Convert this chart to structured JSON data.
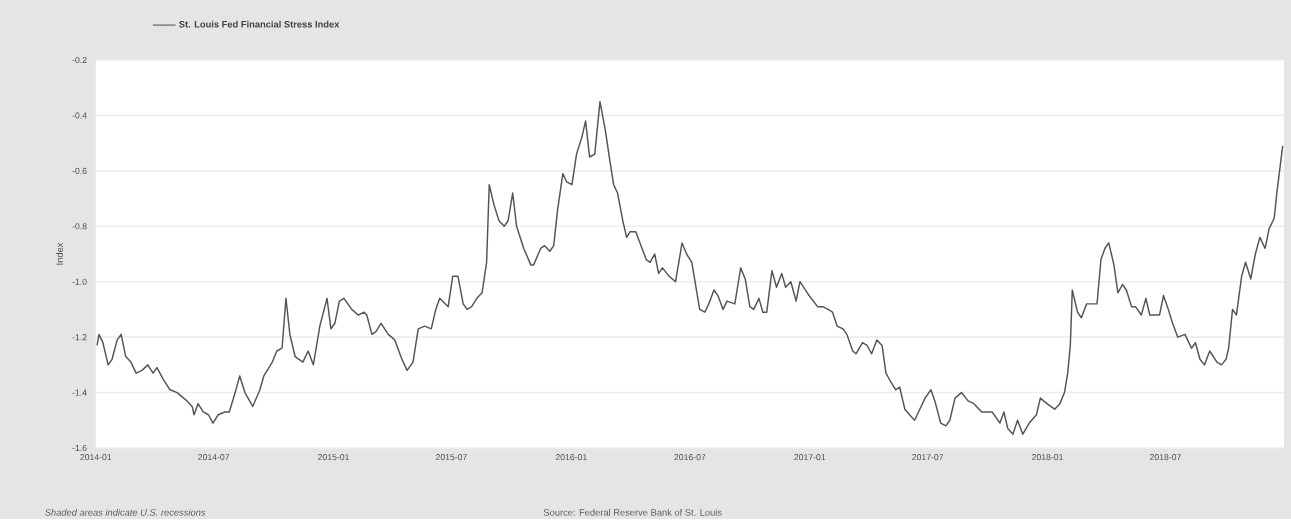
{
  "chart_data": {
    "type": "line",
    "ylabel": "Index",
    "annotations": [
      "Shaded areas indicate U.S. recessions",
      "Source: Federal Reserve Bank of St. Louis"
    ],
    "legend": "top left",
    "grid": "y",
    "marker": "none",
    "line_style": "solid",
    "xlim": [
      "2014-01-01",
      "2018-12-30"
    ],
    "ylim": [
      -1.6,
      -0.2
    ],
    "xticks": [
      {
        "value": "2014-01",
        "label": "2014-01"
      },
      {
        "value": "2014-07",
        "label": "2014-07"
      },
      {
        "value": "2015-01",
        "label": "2015-01"
      },
      {
        "value": "2015-07",
        "label": "2015-07"
      },
      {
        "value": "2016-01",
        "label": "2016-01"
      },
      {
        "value": "2016-07",
        "label": "2016-07"
      },
      {
        "value": "2017-01",
        "label": "2017-01"
      },
      {
        "value": "2017-07",
        "label": "2017-07"
      },
      {
        "value": "2018-01",
        "label": "2018-01"
      },
      {
        "value": "2018-07",
        "label": "2018-07"
      }
    ],
    "yticks": [
      {
        "value": -1.6,
        "label": "-1.6"
      },
      {
        "value": -1.4,
        "label": "-1.4"
      },
      {
        "value": -1.2,
        "label": "-1.2"
      },
      {
        "value": -1.0,
        "label": "-1.0"
      },
      {
        "value": -0.8,
        "label": "-0.8"
      },
      {
        "value": -0.6,
        "label": "-0.6"
      },
      {
        "value": -0.4,
        "label": "-0.4"
      },
      {
        "value": -0.2,
        "label": "-0.2"
      }
    ],
    "x": [
      "2014-01-03",
      "2014-01-06",
      "2014-01-12",
      "2014-01-20",
      "2014-01-26",
      "2014-02-03",
      "2014-02-09",
      "2014-02-16",
      "2014-02-24",
      "2014-03-04",
      "2014-03-13",
      "2014-03-22",
      "2014-03-30",
      "2014-04-05",
      "2014-04-14",
      "2014-04-25",
      "2014-05-06",
      "2014-05-21",
      "2014-05-29",
      "2014-06-01",
      "2014-06-07",
      "2014-06-15",
      "2014-06-23",
      "2014-06-30",
      "2014-07-08",
      "2014-07-18",
      "2014-07-25",
      "2014-08-03",
      "2014-08-10",
      "2014-08-18",
      "2014-08-30",
      "2014-09-10",
      "2014-09-16",
      "2014-09-29",
      "2014-10-06",
      "2014-10-14",
      "2014-10-20",
      "2014-10-26",
      "2014-11-03",
      "2014-11-15",
      "2014-11-23",
      "2014-12-01",
      "2014-12-11",
      "2014-12-22",
      "2014-12-28",
      "2015-01-03",
      "2015-01-10",
      "2015-01-17",
      "2015-01-29",
      "2015-02-08",
      "2015-02-17",
      "2015-02-21",
      "2015-03-01",
      "2015-03-07",
      "2015-03-15",
      "2015-03-26",
      "2015-04-05",
      "2015-04-16",
      "2015-04-24",
      "2015-05-03",
      "2015-05-11",
      "2015-05-21",
      "2015-05-31",
      "2015-06-07",
      "2015-06-13",
      "2015-06-26",
      "2015-07-03",
      "2015-07-11",
      "2015-07-19",
      "2015-07-25",
      "2015-08-01",
      "2015-08-09",
      "2015-08-17",
      "2015-08-24",
      "2015-08-28",
      "2015-09-04",
      "2015-09-12",
      "2015-09-20",
      "2015-09-26",
      "2015-10-03",
      "2015-10-09",
      "2015-10-20",
      "2015-10-31",
      "2015-11-04",
      "2015-11-15",
      "2015-11-21",
      "2015-11-29",
      "2015-12-05",
      "2015-12-11",
      "2015-12-19",
      "2015-12-25",
      "2016-01-02",
      "2016-01-09",
      "2016-01-17",
      "2016-01-23",
      "2016-01-29",
      "2016-02-06",
      "2016-02-14",
      "2016-02-22",
      "2016-02-29",
      "2016-03-06",
      "2016-03-12",
      "2016-03-20",
      "2016-03-26",
      "2016-03-31",
      "2016-04-09",
      "2016-04-17",
      "2016-04-25",
      "2016-05-01",
      "2016-05-08",
      "2016-05-14",
      "2016-05-20",
      "2016-05-30",
      "2016-06-09",
      "2016-06-19",
      "2016-06-26",
      "2016-07-04",
      "2016-07-16",
      "2016-07-24",
      "2016-07-30",
      "2016-08-07",
      "2016-08-13",
      "2016-08-21",
      "2016-08-27",
      "2016-09-08",
      "2016-09-17",
      "2016-09-24",
      "2016-10-01",
      "2016-10-07",
      "2016-10-15",
      "2016-10-21",
      "2016-10-27",
      "2016-11-04",
      "2016-11-11",
      "2016-11-19",
      "2016-11-25",
      "2016-12-03",
      "2016-12-11",
      "2016-12-17",
      "2016-12-31",
      "2017-01-13",
      "2017-01-21",
      "2017-01-29",
      "2017-02-05",
      "2017-02-12",
      "2017-02-21",
      "2017-02-27",
      "2017-03-08",
      "2017-03-13",
      "2017-03-23",
      "2017-03-30",
      "2017-04-06",
      "2017-04-14",
      "2017-04-22",
      "2017-04-28",
      "2017-05-05",
      "2017-05-13",
      "2017-05-19",
      "2017-05-27",
      "2017-06-07",
      "2017-06-11",
      "2017-06-19",
      "2017-06-27",
      "2017-07-06",
      "2017-07-12",
      "2017-07-21",
      "2017-07-29",
      "2017-08-04",
      "2017-08-12",
      "2017-08-22",
      "2017-09-01",
      "2017-09-10",
      "2017-09-22",
      "2017-10-08",
      "2017-10-20",
      "2017-10-26",
      "2017-11-01",
      "2017-11-09",
      "2017-11-16",
      "2017-11-24",
      "2017-12-04",
      "2017-12-15",
      "2017-12-21",
      "2017-12-31",
      "2018-01-12",
      "2018-01-20",
      "2018-01-27",
      "2018-02-01",
      "2018-02-05",
      "2018-02-08",
      "2018-02-16",
      "2018-02-22",
      "2018-03-02",
      "2018-03-10",
      "2018-03-18",
      "2018-03-24",
      "2018-03-30",
      "2018-04-05",
      "2018-04-13",
      "2018-04-19",
      "2018-04-26",
      "2018-05-02",
      "2018-05-10",
      "2018-05-16",
      "2018-05-25",
      "2018-06-01",
      "2018-06-07",
      "2018-06-17",
      "2018-06-22",
      "2018-06-28",
      "2018-07-04",
      "2018-07-12",
      "2018-07-20",
      "2018-07-31",
      "2018-08-10",
      "2018-08-16",
      "2018-08-23",
      "2018-08-30",
      "2018-09-07",
      "2018-09-18",
      "2018-09-25",
      "2018-10-02",
      "2018-10-06",
      "2018-10-12",
      "2018-10-18",
      "2018-10-26",
      "2018-11-01",
      "2018-11-09",
      "2018-11-16",
      "2018-11-23",
      "2018-12-01",
      "2018-12-07",
      "2018-12-15",
      "2018-12-19",
      "2018-12-28"
    ],
    "series": [
      {
        "name": "St. Louis Fed Financial Stress Index",
        "color": "#555555",
        "values": [
          -1.23,
          -1.19,
          -1.22,
          -1.3,
          -1.28,
          -1.21,
          -1.19,
          -1.27,
          -1.29,
          -1.33,
          -1.32,
          -1.3,
          -1.33,
          -1.31,
          -1.35,
          -1.39,
          -1.4,
          -1.43,
          -1.45,
          -1.48,
          -1.44,
          -1.47,
          -1.48,
          -1.51,
          -1.48,
          -1.47,
          -1.47,
          -1.4,
          -1.34,
          -1.4,
          -1.45,
          -1.39,
          -1.34,
          -1.29,
          -1.25,
          -1.24,
          -1.06,
          -1.19,
          -1.27,
          -1.29,
          -1.25,
          -1.3,
          -1.16,
          -1.06,
          -1.17,
          -1.15,
          -1.07,
          -1.06,
          -1.1,
          -1.12,
          -1.11,
          -1.12,
          -1.19,
          -1.18,
          -1.15,
          -1.19,
          -1.21,
          -1.28,
          -1.32,
          -1.29,
          -1.17,
          -1.16,
          -1.17,
          -1.1,
          -1.06,
          -1.09,
          -0.98,
          -0.98,
          -1.08,
          -1.1,
          -1.09,
          -1.06,
          -1.04,
          -0.93,
          -0.65,
          -0.72,
          -0.78,
          -0.8,
          -0.78,
          -0.68,
          -0.8,
          -0.88,
          -0.94,
          -0.94,
          -0.88,
          -0.87,
          -0.89,
          -0.87,
          -0.74,
          -0.61,
          -0.64,
          -0.65,
          -0.54,
          -0.48,
          -0.42,
          -0.55,
          -0.54,
          -0.35,
          -0.45,
          -0.56,
          -0.65,
          -0.68,
          -0.78,
          -0.84,
          -0.82,
          -0.82,
          -0.87,
          -0.92,
          -0.93,
          -0.9,
          -0.97,
          -0.95,
          -0.98,
          -1.0,
          -0.86,
          -0.9,
          -0.93,
          -1.1,
          -1.11,
          -1.08,
          -1.03,
          -1.05,
          -1.1,
          -1.07,
          -1.08,
          -0.95,
          -0.99,
          -1.09,
          -1.1,
          -1.06,
          -1.11,
          -1.11,
          -0.96,
          -1.02,
          -0.97,
          -1.02,
          -1.0,
          -1.07,
          -1.0,
          -1.05,
          -1.09,
          -1.09,
          -1.1,
          -1.11,
          -1.16,
          -1.17,
          -1.19,
          -1.25,
          -1.26,
          -1.22,
          -1.23,
          -1.26,
          -1.21,
          -1.23,
          -1.33,
          -1.36,
          -1.39,
          -1.38,
          -1.46,
          -1.49,
          -1.5,
          -1.46,
          -1.42,
          -1.39,
          -1.43,
          -1.51,
          -1.52,
          -1.5,
          -1.42,
          -1.4,
          -1.43,
          -1.44,
          -1.47,
          -1.47,
          -1.51,
          -1.47,
          -1.53,
          -1.55,
          -1.5,
          -1.55,
          -1.51,
          -1.48,
          -1.42,
          -1.44,
          -1.46,
          -1.44,
          -1.4,
          -1.33,
          -1.23,
          -1.03,
          -1.11,
          -1.13,
          -1.08,
          -1.08,
          -1.08,
          -0.92,
          -0.88,
          -0.86,
          -0.94,
          -1.04,
          -1.01,
          -1.03,
          -1.09,
          -1.09,
          -1.12,
          -1.06,
          -1.12,
          -1.12,
          -1.12,
          -1.05,
          -1.09,
          -1.15,
          -1.2,
          -1.19,
          -1.24,
          -1.22,
          -1.28,
          -1.3,
          -1.25,
          -1.29,
          -1.3,
          -1.28,
          -1.24,
          -1.1,
          -1.12,
          -0.98,
          -0.93,
          -0.99,
          -0.9,
          -0.84,
          -0.88,
          -0.81,
          -0.77,
          -0.68,
          -0.51
        ]
      }
    ]
  }
}
